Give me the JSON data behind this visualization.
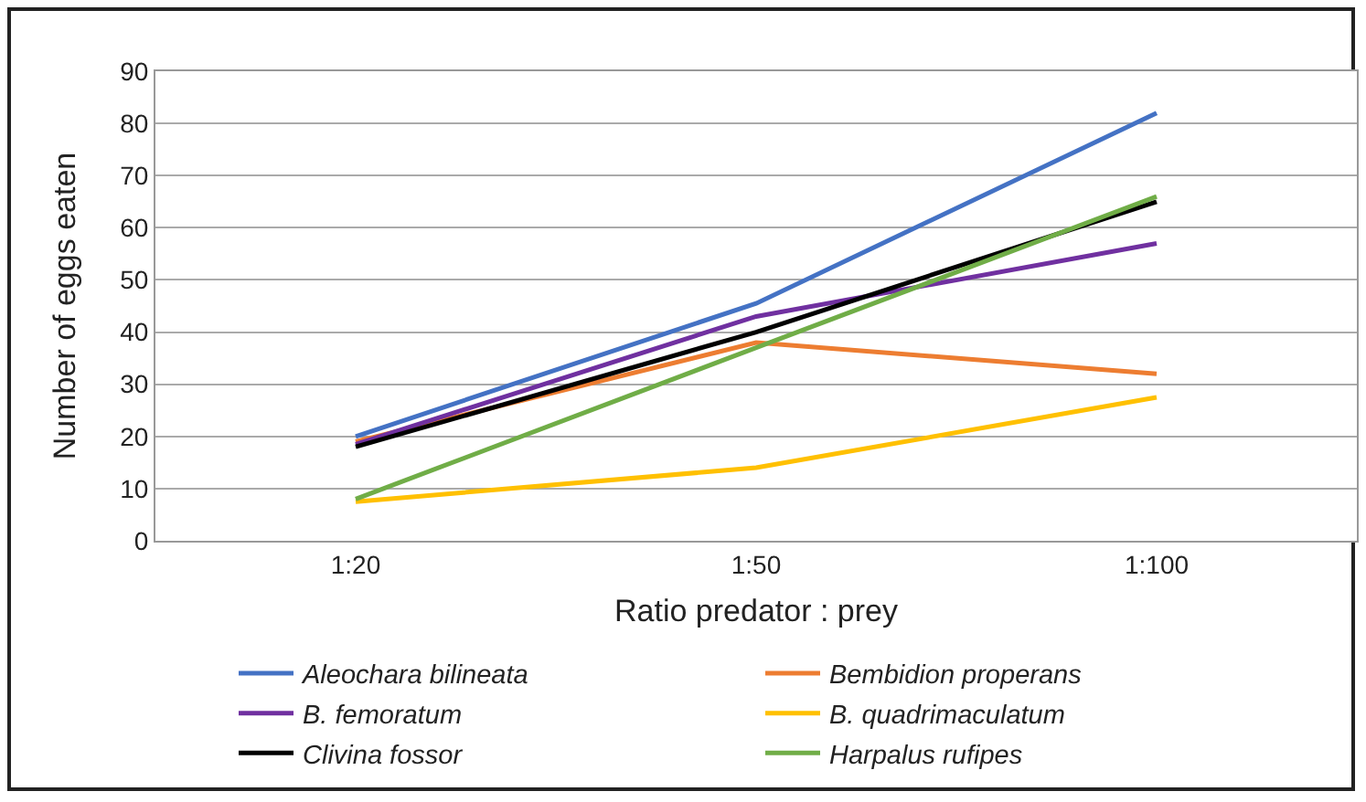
{
  "chart_data": {
    "type": "line",
    "xlabel": "Ratio predator : prey",
    "ylabel": "Number of eggs eaten",
    "categories": [
      "1:20",
      "1:50",
      "1:100"
    ],
    "series": [
      {
        "name": "Aleochara bilineata",
        "color": "#4472c4",
        "values": [
          20,
          45.5,
          82
        ]
      },
      {
        "name": "Bembidion properans",
        "color": "#ed7d31",
        "values": [
          19,
          38,
          32
        ]
      },
      {
        "name": "B. femoratum",
        "color": "#7030a0",
        "values": [
          18.5,
          43,
          57
        ]
      },
      {
        "name": "B. quadrimaculatum",
        "color": "#ffc000",
        "values": [
          7.5,
          14,
          27.5
        ]
      },
      {
        "name": "Clivina fossor",
        "color": "#000000",
        "values": [
          18,
          40,
          65
        ]
      },
      {
        "name": "Harpalus rufipes",
        "color": "#70ad47",
        "values": [
          8,
          37,
          66
        ]
      }
    ],
    "ylim": [
      0,
      90
    ],
    "yticks": [
      0,
      10,
      20,
      30,
      40,
      50,
      60,
      70,
      80,
      90
    ],
    "grid": "y",
    "legend": "bottom",
    "marker": "none",
    "line_style": "solid"
  }
}
